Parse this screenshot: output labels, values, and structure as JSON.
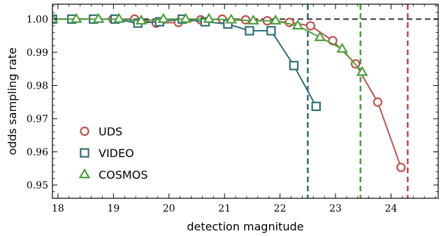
{
  "chart_data": {
    "type": "line",
    "xlabel": "detection magnitude",
    "ylabel": "odds sampling rate",
    "xlim": [
      17.9,
      24.85
    ],
    "ylim": [
      0.946,
      1.0045
    ],
    "xticks": [
      18,
      19,
      20,
      21,
      22,
      23,
      24
    ],
    "yticks": [
      0.95,
      0.96,
      0.97,
      0.98,
      0.99,
      1.0
    ],
    "ytick_labels": [
      "0.95",
      "0.96",
      "0.97",
      "0.98",
      "0.99",
      "1.00"
    ],
    "reference_line": {
      "y": 1.0,
      "color": "#333333"
    },
    "legend_position": "lower-left",
    "series": [
      {
        "name": "UDS",
        "marker": "circle",
        "color": "#c0504d",
        "x": [
          17.9,
          18.26,
          18.64,
          18.99,
          19.38,
          19.77,
          20.17,
          20.57,
          20.96,
          21.38,
          21.77,
          22.17,
          22.55,
          22.95,
          23.36,
          23.76,
          24.18
        ],
        "y": [
          1.0,
          1.0,
          1.0,
          1.0,
          1.0,
          0.9988,
          0.999,
          0.9998,
          1.0,
          0.9998,
          0.9995,
          0.999,
          0.998,
          0.9935,
          0.9865,
          0.975,
          0.9553
        ],
        "cutoff": 24.3
      },
      {
        "name": "VIDEO",
        "marker": "square",
        "color": "#2f6f73",
        "x": [
          17.9,
          18.25,
          18.64,
          19.03,
          19.44,
          19.83,
          20.24,
          20.65,
          21.06,
          21.45,
          21.84,
          22.25,
          22.65
        ],
        "y": [
          1.0,
          1.0,
          1.0,
          1.0,
          0.9988,
          0.9992,
          1.0,
          0.9992,
          0.9985,
          0.9965,
          0.9965,
          0.986,
          0.9737
        ],
        "cutoff": 22.5
      },
      {
        "name": "COSMOS",
        "marker": "triangle",
        "color": "#4e9f3d",
        "x": [
          17.9,
          18.33,
          18.73,
          19.1,
          19.5,
          19.9,
          20.3,
          20.72,
          21.12,
          21.52,
          21.92,
          22.32,
          22.72,
          23.12,
          23.48
        ],
        "y": [
          1.0,
          1.0,
          1.0,
          1.0,
          0.9995,
          1.0,
          1.0,
          1.0,
          0.9998,
          0.9995,
          0.9995,
          0.998,
          0.9945,
          0.991,
          0.984
        ],
        "cutoff": 23.45
      }
    ]
  }
}
